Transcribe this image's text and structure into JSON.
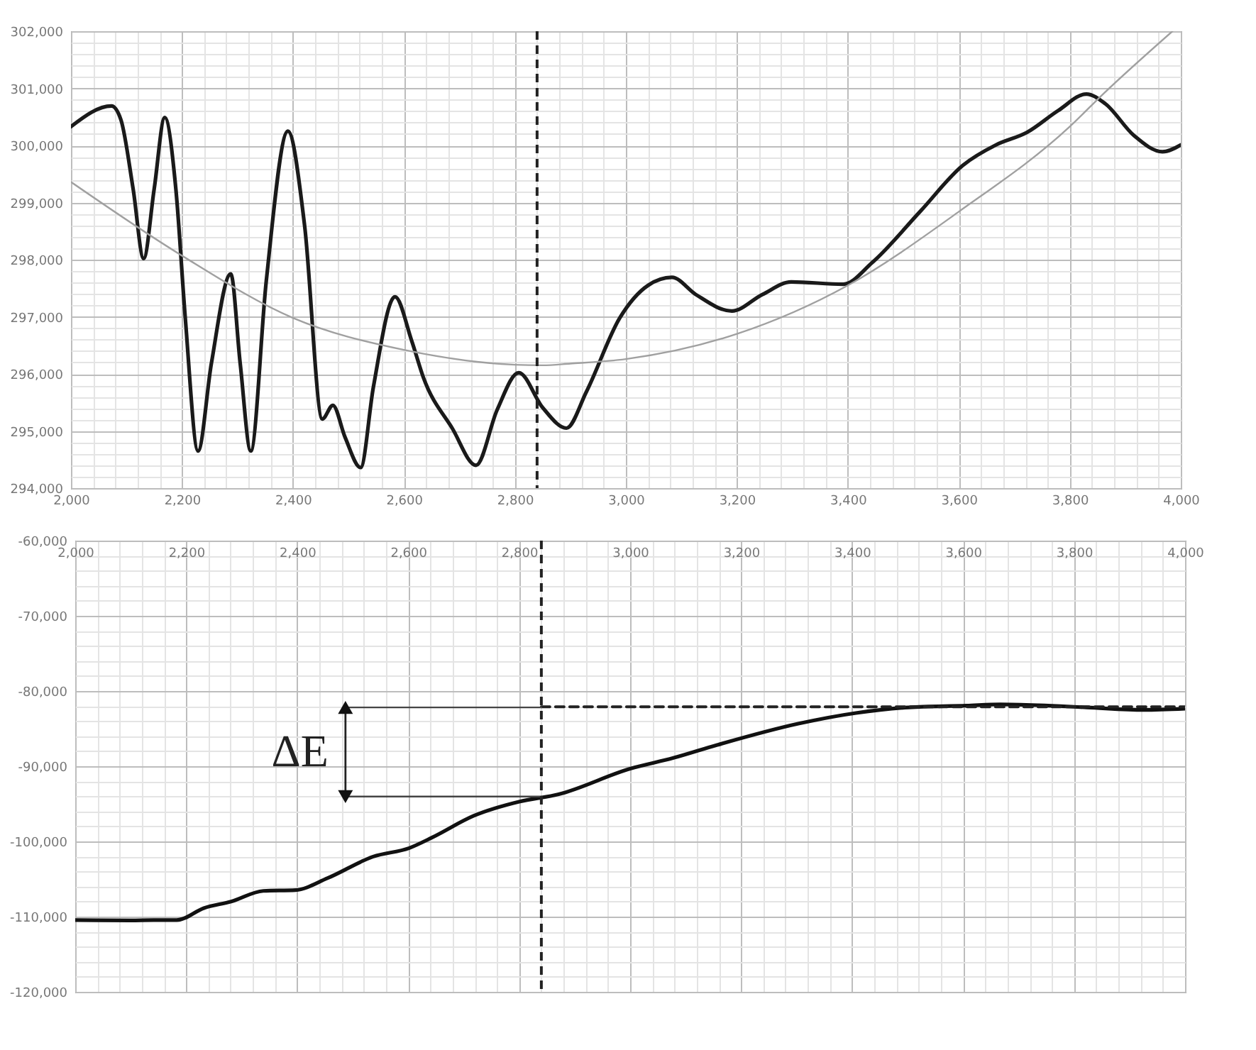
{
  "chart_data": [
    {
      "type": "line",
      "grid": true,
      "xlim": [
        2000,
        4000
      ],
      "ylim": [
        294000,
        302000
      ],
      "xticks": [
        {
          "value": 2000,
          "label": "2,000"
        },
        {
          "value": 2040,
          "label": null
        },
        {
          "value": 2080,
          "label": null
        },
        {
          "value": 2120,
          "label": null
        },
        {
          "value": 2160,
          "label": null
        },
        {
          "value": 2200,
          "label": "2,200"
        },
        {
          "value": 2240,
          "label": null
        },
        {
          "value": 2280,
          "label": null
        },
        {
          "value": 2320,
          "label": null
        },
        {
          "value": 2360,
          "label": null
        },
        {
          "value": 2400,
          "label": "2,400"
        },
        {
          "value": 2440,
          "label": null
        },
        {
          "value": 2480,
          "label": null
        },
        {
          "value": 2520,
          "label": null
        },
        {
          "value": 2560,
          "label": null
        },
        {
          "value": 2600,
          "label": "2,600"
        },
        {
          "value": 2640,
          "label": null
        },
        {
          "value": 2680,
          "label": null
        },
        {
          "value": 2720,
          "label": null
        },
        {
          "value": 2760,
          "label": null
        },
        {
          "value": 2800,
          "label": "2,800"
        },
        {
          "value": 2840,
          "label": null
        },
        {
          "value": 2880,
          "label": null
        },
        {
          "value": 2920,
          "label": null
        },
        {
          "value": 2960,
          "label": null
        },
        {
          "value": 3000,
          "label": "3,000"
        },
        {
          "value": 3040,
          "label": null
        },
        {
          "value": 3080,
          "label": null
        },
        {
          "value": 3120,
          "label": null
        },
        {
          "value": 3160,
          "label": null
        },
        {
          "value": 3200,
          "label": "3,200"
        },
        {
          "value": 3240,
          "label": null
        },
        {
          "value": 3280,
          "label": null
        },
        {
          "value": 3320,
          "label": null
        },
        {
          "value": 3360,
          "label": null
        },
        {
          "value": 3400,
          "label": "3,400"
        },
        {
          "value": 3440,
          "label": null
        },
        {
          "value": 3480,
          "label": null
        },
        {
          "value": 3520,
          "label": null
        },
        {
          "value": 3560,
          "label": null
        },
        {
          "value": 3600,
          "label": "3,600"
        },
        {
          "value": 3640,
          "label": null
        },
        {
          "value": 3680,
          "label": null
        },
        {
          "value": 3720,
          "label": null
        },
        {
          "value": 3760,
          "label": null
        },
        {
          "value": 3800,
          "label": "3,800"
        },
        {
          "value": 3840,
          "label": null
        },
        {
          "value": 3880,
          "label": null
        },
        {
          "value": 3920,
          "label": null
        },
        {
          "value": 3960,
          "label": null
        },
        {
          "value": 4000,
          "label": "4,000"
        }
      ],
      "yticks": [
        {
          "value": 294000,
          "label": "294,000"
        },
        {
          "value": 294200,
          "label": null
        },
        {
          "value": 294400,
          "label": null
        },
        {
          "value": 294600,
          "label": null
        },
        {
          "value": 294800,
          "label": null
        },
        {
          "value": 295000,
          "label": "295,000"
        },
        {
          "value": 295200,
          "label": null
        },
        {
          "value": 295400,
          "label": null
        },
        {
          "value": 295600,
          "label": null
        },
        {
          "value": 295800,
          "label": null
        },
        {
          "value": 296000,
          "label": "296,000"
        },
        {
          "value": 296200,
          "label": null
        },
        {
          "value": 296400,
          "label": null
        },
        {
          "value": 296600,
          "label": null
        },
        {
          "value": 296800,
          "label": null
        },
        {
          "value": 297000,
          "label": "297,000"
        },
        {
          "value": 297200,
          "label": null
        },
        {
          "value": 297400,
          "label": null
        },
        {
          "value": 297600,
          "label": null
        },
        {
          "value": 297800,
          "label": null
        },
        {
          "value": 298000,
          "label": "298,000"
        },
        {
          "value": 298200,
          "label": null
        },
        {
          "value": 298400,
          "label": null
        },
        {
          "value": 298600,
          "label": null
        },
        {
          "value": 298800,
          "label": null
        },
        {
          "value": 299000,
          "label": "299,000"
        },
        {
          "value": 299200,
          "label": null
        },
        {
          "value": 299400,
          "label": null
        },
        {
          "value": 299600,
          "label": null
        },
        {
          "value": 299800,
          "label": null
        },
        {
          "value": 300000,
          "label": "300,000"
        },
        {
          "value": 300200,
          "label": null
        },
        {
          "value": 300400,
          "label": null
        },
        {
          "value": 300600,
          "label": null
        },
        {
          "value": 300800,
          "label": null
        },
        {
          "value": 301000,
          "label": "301,000"
        },
        {
          "value": 301200,
          "label": null
        },
        {
          "value": 301400,
          "label": null
        },
        {
          "value": 301600,
          "label": null
        },
        {
          "value": 301800,
          "label": null
        },
        {
          "value": 302000,
          "label": "302,000"
        }
      ],
      "series": [
        {
          "color": "#1a1a1a",
          "x": [
            2000,
            2073,
            2090,
            2112,
            2131,
            2150,
            2169,
            2189,
            2206,
            2229,
            2253,
            2288,
            2305,
            2324,
            2352,
            2391,
            2421,
            2453,
            2472,
            2494,
            2522,
            2545,
            2584,
            2614,
            2635,
            2687,
            2730,
            2768,
            2807,
            2850,
            2893,
            2929,
            2989,
            3040,
            3083,
            3126,
            3191,
            3246,
            3298,
            3392,
            3444,
            3530,
            3607,
            3667,
            3723,
            3779,
            3830,
            3864,
            3916,
            3967,
            4000
          ],
          "values": [
            300330,
            300690,
            300450,
            299240,
            298020,
            299240,
            300490,
            299240,
            296980,
            294650,
            296180,
            297750,
            296180,
            294650,
            297630,
            300250,
            298600,
            295210,
            295450,
            294890,
            294360,
            295770,
            297350,
            296580,
            295940,
            295050,
            294400,
            295370,
            296020,
            295410,
            295050,
            295690,
            296980,
            297550,
            297690,
            297390,
            297100,
            297390,
            297610,
            297570,
            297950,
            298840,
            299650,
            300010,
            300230,
            300610,
            300900,
            300730,
            300170,
            299890,
            300010
          ]
        },
        {
          "color": "#a0a0a0",
          "x": [
            2000,
            2200,
            2400,
            2600,
            2800,
            2850,
            2900,
            3000,
            3200,
            3400,
            3600,
            3800,
            3860,
            3985
          ],
          "values": [
            299360,
            298070,
            296980,
            296420,
            296160,
            296150,
            296180,
            296260,
            296700,
            297550,
            298840,
            300330,
            300900,
            302000
          ]
        }
      ],
      "ref_lines": [
        {
          "axis": "x",
          "value": 2840,
          "color": "#222222",
          "line_style": "dashed"
        }
      ]
    },
    {
      "type": "line",
      "grid": true,
      "xlim": [
        2000,
        4000
      ],
      "ylim": [
        -120000,
        -60000
      ],
      "xticks": [
        {
          "value": 2000,
          "label": "2,000"
        },
        {
          "value": 2040,
          "label": null
        },
        {
          "value": 2080,
          "label": null
        },
        {
          "value": 2120,
          "label": null
        },
        {
          "value": 2160,
          "label": null
        },
        {
          "value": 2200,
          "label": "2,200"
        },
        {
          "value": 2240,
          "label": null
        },
        {
          "value": 2280,
          "label": null
        },
        {
          "value": 2320,
          "label": null
        },
        {
          "value": 2360,
          "label": null
        },
        {
          "value": 2400,
          "label": "2,400"
        },
        {
          "value": 2440,
          "label": null
        },
        {
          "value": 2480,
          "label": null
        },
        {
          "value": 2520,
          "label": null
        },
        {
          "value": 2560,
          "label": null
        },
        {
          "value": 2600,
          "label": "2,600"
        },
        {
          "value": 2640,
          "label": null
        },
        {
          "value": 2680,
          "label": null
        },
        {
          "value": 2720,
          "label": null
        },
        {
          "value": 2760,
          "label": null
        },
        {
          "value": 2800,
          "label": "2,800"
        },
        {
          "value": 2840,
          "label": null
        },
        {
          "value": 2880,
          "label": null
        },
        {
          "value": 2920,
          "label": null
        },
        {
          "value": 2960,
          "label": null
        },
        {
          "value": 3000,
          "label": "3,000"
        },
        {
          "value": 3040,
          "label": null
        },
        {
          "value": 3080,
          "label": null
        },
        {
          "value": 3120,
          "label": null
        },
        {
          "value": 3160,
          "label": null
        },
        {
          "value": 3200,
          "label": "3,200"
        },
        {
          "value": 3240,
          "label": null
        },
        {
          "value": 3280,
          "label": null
        },
        {
          "value": 3320,
          "label": null
        },
        {
          "value": 3360,
          "label": null
        },
        {
          "value": 3400,
          "label": "3,400"
        },
        {
          "value": 3440,
          "label": null
        },
        {
          "value": 3480,
          "label": null
        },
        {
          "value": 3520,
          "label": null
        },
        {
          "value": 3560,
          "label": null
        },
        {
          "value": 3600,
          "label": "3,600"
        },
        {
          "value": 3640,
          "label": null
        },
        {
          "value": 3680,
          "label": null
        },
        {
          "value": 3720,
          "label": null
        },
        {
          "value": 3760,
          "label": null
        },
        {
          "value": 3800,
          "label": "3,800"
        },
        {
          "value": 3840,
          "label": null
        },
        {
          "value": 3880,
          "label": null
        },
        {
          "value": 3920,
          "label": null
        },
        {
          "value": 3960,
          "label": null
        },
        {
          "value": 4000,
          "label": "4,000"
        }
      ],
      "yticks": [
        {
          "value": -120000,
          "label": "-120,000"
        },
        {
          "value": -118000,
          "label": null
        },
        {
          "value": -116000,
          "label": null
        },
        {
          "value": -114000,
          "label": null
        },
        {
          "value": -112000,
          "label": null
        },
        {
          "value": -110000,
          "label": "-110,000"
        },
        {
          "value": -108000,
          "label": null
        },
        {
          "value": -106000,
          "label": null
        },
        {
          "value": -104000,
          "label": null
        },
        {
          "value": -102000,
          "label": null
        },
        {
          "value": -100000,
          "label": "-100,000"
        },
        {
          "value": -98000,
          "label": null
        },
        {
          "value": -96000,
          "label": null
        },
        {
          "value": -94000,
          "label": null
        },
        {
          "value": -92000,
          "label": null
        },
        {
          "value": -90000,
          "label": "-90,000"
        },
        {
          "value": -88000,
          "label": null
        },
        {
          "value": -86000,
          "label": null
        },
        {
          "value": -84000,
          "label": null
        },
        {
          "value": -82000,
          "label": null
        },
        {
          "value": -80000,
          "label": "-80,000"
        },
        {
          "value": -78000,
          "label": null
        },
        {
          "value": -76000,
          "label": null
        },
        {
          "value": -74000,
          "label": null
        },
        {
          "value": -72000,
          "label": null
        },
        {
          "value": -70000,
          "label": "-70,000"
        },
        {
          "value": -68000,
          "label": null
        },
        {
          "value": -66000,
          "label": null
        },
        {
          "value": -64000,
          "label": null
        },
        {
          "value": -62000,
          "label": null
        },
        {
          "value": -60000,
          "label": "-60,000"
        }
      ],
      "series": [
        {
          "color": "#111111",
          "x": [
            2000,
            2100,
            2141,
            2183,
            2232,
            2281,
            2339,
            2397,
            2455,
            2537,
            2602,
            2644,
            2718,
            2800,
            2870,
            3000,
            3078,
            3156,
            3303,
            3407,
            3502,
            3606,
            3667,
            3736,
            3823,
            3926,
            4000
          ],
          "values": [
            -110460,
            -110500,
            -110460,
            -110460,
            -108860,
            -108000,
            -106580,
            -106470,
            -104870,
            -102020,
            -100880,
            -99450,
            -96600,
            -94720,
            -93750,
            -90330,
            -88900,
            -87190,
            -84340,
            -82920,
            -82180,
            -81950,
            -81780,
            -81890,
            -82180,
            -82520,
            -82350
          ]
        },
        {
          "color": "#222222",
          "line_style": "dashed",
          "x": [
            2840,
            4000
          ],
          "values": [
            -82100,
            -82100
          ]
        },
        {
          "color": "#444444",
          "x": [
            2487,
            2840
          ],
          "values": [
            -82180,
            -82180
          ]
        },
        {
          "color": "#444444",
          "x": [
            2487,
            2840
          ],
          "values": [
            -94040,
            -94040
          ]
        }
      ],
      "ref_lines": [
        {
          "axis": "x",
          "value": 2840,
          "color": "#222222",
          "line_style": "dashed"
        }
      ],
      "annotations": [
        "ΔE"
      ]
    }
  ]
}
